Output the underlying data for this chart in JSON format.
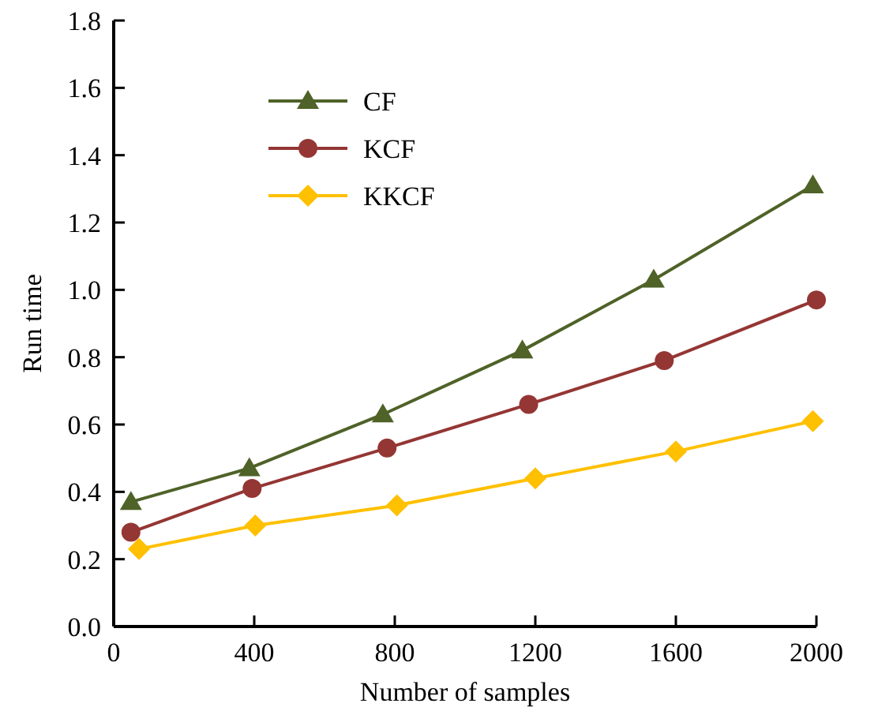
{
  "chart_data": {
    "type": "line",
    "xlabel": "Number of samples",
    "ylabel": "Run time",
    "xlim": [
      0,
      2000
    ],
    "ylim": [
      0,
      1.8
    ],
    "xticks": [
      0,
      400,
      800,
      1200,
      1600,
      2000
    ],
    "yticks": [
      {
        "value": 0,
        "label": "0.0"
      },
      0.2,
      0.4,
      0.6,
      0.8,
      {
        "value": 1,
        "label": "1.0"
      },
      1.2,
      1.4,
      1.6,
      1.8
    ],
    "legend": "top left",
    "grid": false,
    "series": [
      {
        "name": "CF",
        "color": "#4f6228",
        "marker": "triangle",
        "x": [
          49,
          386,
          766,
          1163,
          1537,
          1990
        ],
        "values": [
          0.37,
          0.47,
          0.63,
          0.82,
          1.03,
          1.31
        ]
      },
      {
        "name": "KCF",
        "color": "#943634",
        "marker": "circle",
        "x": [
          49,
          394,
          778,
          1181,
          1567,
          2000
        ],
        "values": [
          0.28,
          0.41,
          0.53,
          0.66,
          0.79,
          0.97
        ]
      },
      {
        "name": "KKCF",
        "color": "#ffc000",
        "marker": "diamond",
        "x": [
          72,
          403,
          806,
          1200,
          1600,
          1990
        ],
        "values": [
          0.23,
          0.3,
          0.36,
          0.44,
          0.52,
          0.61
        ]
      }
    ]
  }
}
